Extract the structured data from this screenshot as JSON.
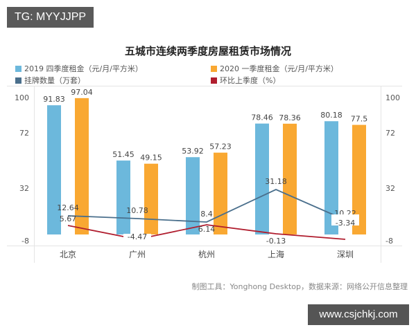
{
  "watermark_tag": "TG: MYYJJPP",
  "watermark_url": "www.csjchkj.com",
  "footer": "制图工具：Yonghong Desktop，数据来源：网络公开信息整理",
  "colors": {
    "rent_2019q4": "#6cb8dc",
    "rent_2020q1": "#f9a832",
    "listings": "#4a6f8c",
    "qoq": "#b01d2e"
  },
  "chart_data": {
    "type": "bar+line",
    "title": "五城市连续两季度房屋租赁市场情况",
    "categories": [
      "北京",
      "广州",
      "杭州",
      "上海",
      "深圳"
    ],
    "series": [
      {
        "name": "2019 四季度租金（元/月/平方米）",
        "type": "bar",
        "axis": "left",
        "values": [
          91.83,
          51.45,
          53.92,
          78.46,
          80.18
        ]
      },
      {
        "name": "2020 一季度租金（元/月/平方米）",
        "type": "bar",
        "axis": "left",
        "values": [
          97.04,
          49.15,
          57.23,
          78.36,
          77.5
        ]
      },
      {
        "name": "挂牌数量（万套）",
        "type": "line",
        "axis": "right",
        "values": [
          12.64,
          10.78,
          8.4,
          31.18,
          10.22
        ]
      },
      {
        "name": "环比上季度（%）",
        "type": "line",
        "axis": "right",
        "values": [
          5.67,
          -4.47,
          6.14,
          -0.13,
          -3.34
        ]
      }
    ],
    "left_ticks": [
      "100",
      "72",
      "32",
      "-8"
    ],
    "right_ticks": [
      "100",
      "72",
      "32",
      "-8"
    ],
    "ylim": [
      -8,
      100
    ],
    "legend_position": "top",
    "grid": false
  }
}
